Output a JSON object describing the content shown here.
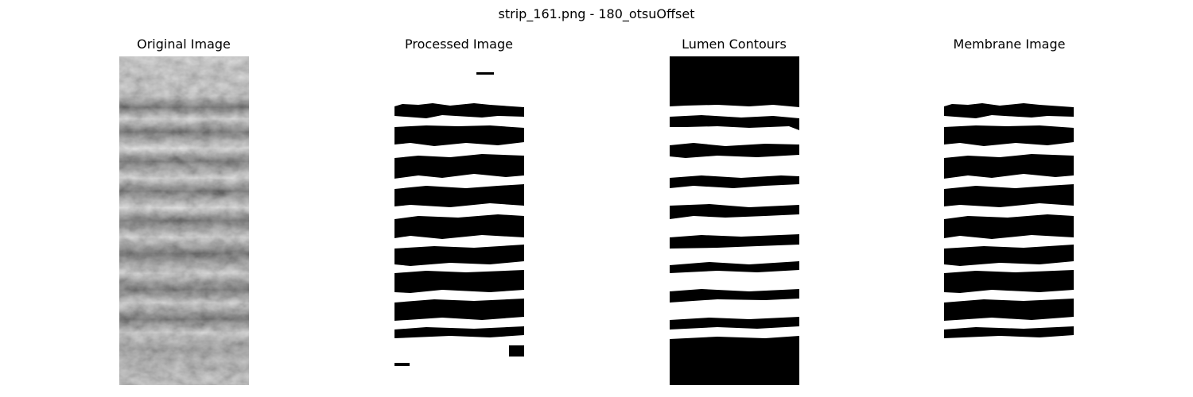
{
  "figure": {
    "suptitle": "strip_161.png - 180_otsuOffset"
  },
  "panels": [
    {
      "title": "Original Image"
    },
    {
      "title": "Processed Image"
    },
    {
      "title": "Lumen Contours"
    },
    {
      "title": "Membrane Image"
    }
  ],
  "colors": {
    "background": "#ffffff",
    "foreground": "#000000"
  }
}
